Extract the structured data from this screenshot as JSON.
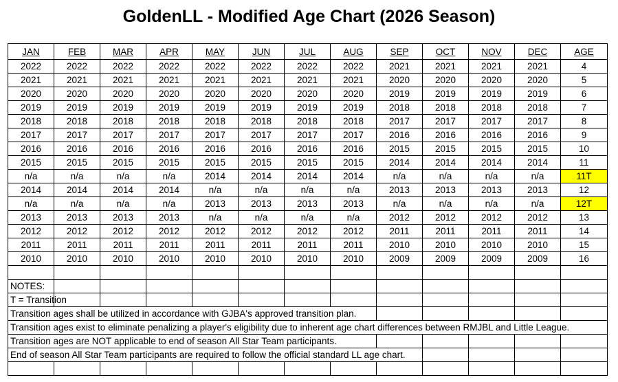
{
  "title": "GoldenLL - Modified Age Chart (2026 Season)",
  "columns": [
    "JAN",
    "FEB",
    "MAR",
    "APR",
    "MAY",
    "JUN",
    "JUL",
    "AUG",
    "SEP",
    "OCT",
    "NOV",
    "DEC",
    "AGE"
  ],
  "rows": [
    {
      "cells": [
        "2022",
        "2022",
        "2022",
        "2022",
        "2022",
        "2022",
        "2022",
        "2022",
        "2021",
        "2021",
        "2021",
        "2021",
        "4"
      ],
      "highlight": false
    },
    {
      "cells": [
        "2021",
        "2021",
        "2021",
        "2021",
        "2021",
        "2021",
        "2021",
        "2021",
        "2020",
        "2020",
        "2020",
        "2020",
        "5"
      ],
      "highlight": false
    },
    {
      "cells": [
        "2020",
        "2020",
        "2020",
        "2020",
        "2020",
        "2020",
        "2020",
        "2020",
        "2019",
        "2019",
        "2019",
        "2019",
        "6"
      ],
      "highlight": false
    },
    {
      "cells": [
        "2019",
        "2019",
        "2019",
        "2019",
        "2019",
        "2019",
        "2019",
        "2019",
        "2018",
        "2018",
        "2018",
        "2018",
        "7"
      ],
      "highlight": false
    },
    {
      "cells": [
        "2018",
        "2018",
        "2018",
        "2018",
        "2018",
        "2018",
        "2018",
        "2018",
        "2017",
        "2017",
        "2017",
        "2017",
        "8"
      ],
      "highlight": false
    },
    {
      "cells": [
        "2017",
        "2017",
        "2017",
        "2017",
        "2017",
        "2017",
        "2017",
        "2017",
        "2016",
        "2016",
        "2016",
        "2016",
        "9"
      ],
      "highlight": false
    },
    {
      "cells": [
        "2016",
        "2016",
        "2016",
        "2016",
        "2016",
        "2016",
        "2016",
        "2016",
        "2015",
        "2015",
        "2015",
        "2015",
        "10"
      ],
      "highlight": false
    },
    {
      "cells": [
        "2015",
        "2015",
        "2015",
        "2015",
        "2015",
        "2015",
        "2015",
        "2015",
        "2014",
        "2014",
        "2014",
        "2014",
        "11"
      ],
      "highlight": false
    },
    {
      "cells": [
        "n/a",
        "n/a",
        "n/a",
        "n/a",
        "2014",
        "2014",
        "2014",
        "2014",
        "n/a",
        "n/a",
        "n/a",
        "n/a",
        "11T"
      ],
      "highlight": true
    },
    {
      "cells": [
        "2014",
        "2014",
        "2014",
        "2014",
        "n/a",
        "n/a",
        "n/a",
        "n/a",
        "2013",
        "2013",
        "2013",
        "2013",
        "12"
      ],
      "highlight": false
    },
    {
      "cells": [
        "n/a",
        "n/a",
        "n/a",
        "n/a",
        "2013",
        "2013",
        "2013",
        "2013",
        "n/a",
        "n/a",
        "n/a",
        "n/a",
        "12T"
      ],
      "highlight": true
    },
    {
      "cells": [
        "2013",
        "2013",
        "2013",
        "2013",
        "n/a",
        "n/a",
        "n/a",
        "n/a",
        "2012",
        "2012",
        "2012",
        "2012",
        "13"
      ],
      "highlight": false
    },
    {
      "cells": [
        "2012",
        "2012",
        "2012",
        "2012",
        "2012",
        "2012",
        "2012",
        "2012",
        "2011",
        "2011",
        "2011",
        "2011",
        "14"
      ],
      "highlight": false
    },
    {
      "cells": [
        "2011",
        "2011",
        "2011",
        "2011",
        "2011",
        "2011",
        "2011",
        "2011",
        "2010",
        "2010",
        "2010",
        "2010",
        "15"
      ],
      "highlight": false
    },
    {
      "cells": [
        "2010",
        "2010",
        "2010",
        "2010",
        "2010",
        "2010",
        "2010",
        "2010",
        "2009",
        "2009",
        "2009",
        "2009",
        "16"
      ],
      "highlight": false
    }
  ],
  "notes": [
    "NOTES:",
    "T = Transition",
    "Transition ages shall be utilized in accordance with GJBA's approved transition plan.",
    "Transition ages exist to eliminate penalizing a player's eligibility due to inherent age chart differences between RMJBL and Little League.",
    "Transition ages are NOT applicable to end of season All Star Team participants.",
    "End of season All Star Team participants are required to follow the official standard LL age chart."
  ],
  "notes_span": [
    1,
    1,
    8,
    13,
    8,
    9
  ],
  "colors": {
    "highlight": "#ffff00",
    "grid": "#000000"
  }
}
